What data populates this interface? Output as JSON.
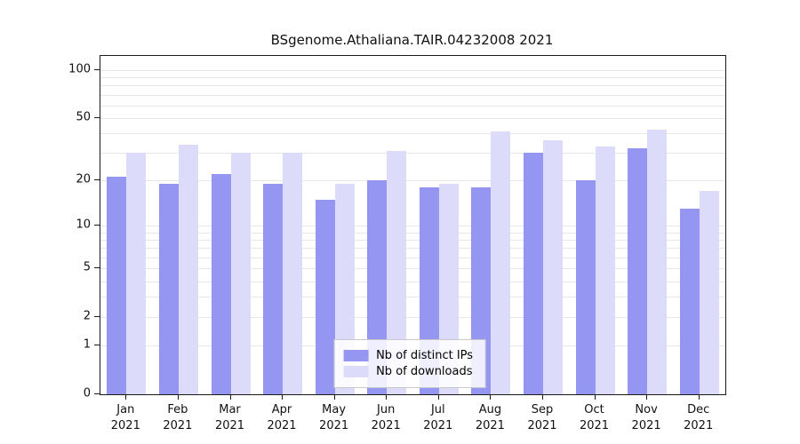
{
  "chart_data": {
    "type": "bar",
    "title": "BSgenome.Athaliana.TAIR.04232008 2021",
    "xlabel": "",
    "ylabel": "",
    "scale": "log1p",
    "ylim": [
      0,
      122
    ],
    "yticks": [
      0,
      1,
      2,
      5,
      10,
      20,
      50,
      100
    ],
    "gridlines": [
      1,
      2,
      3,
      4,
      5,
      6,
      7,
      8,
      9,
      10,
      20,
      30,
      40,
      50,
      60,
      70,
      80,
      90,
      100
    ],
    "categories": [
      "Jan",
      "Feb",
      "Mar",
      "Apr",
      "May",
      "Jun",
      "Jul",
      "Aug",
      "Sep",
      "Oct",
      "Nov",
      "Dec"
    ],
    "year": "2021",
    "series": [
      {
        "name": "Nb of distinct IPs",
        "color": "#9595f2",
        "values": [
          21,
          19,
          22,
          19,
          15,
          20,
          18,
          18,
          30,
          20,
          32,
          13
        ]
      },
      {
        "name": "Nb of downloads",
        "color": "#dcdcfa",
        "values": [
          30,
          34,
          30,
          30,
          19,
          31,
          19,
          41,
          36,
          33,
          42,
          17
        ]
      }
    ],
    "legend_position": "bottom-center",
    "grid": "on",
    "colors": {
      "axis": "#1a1a1a",
      "gridline": "#e7e7e7",
      "background": "#ffffff"
    }
  }
}
